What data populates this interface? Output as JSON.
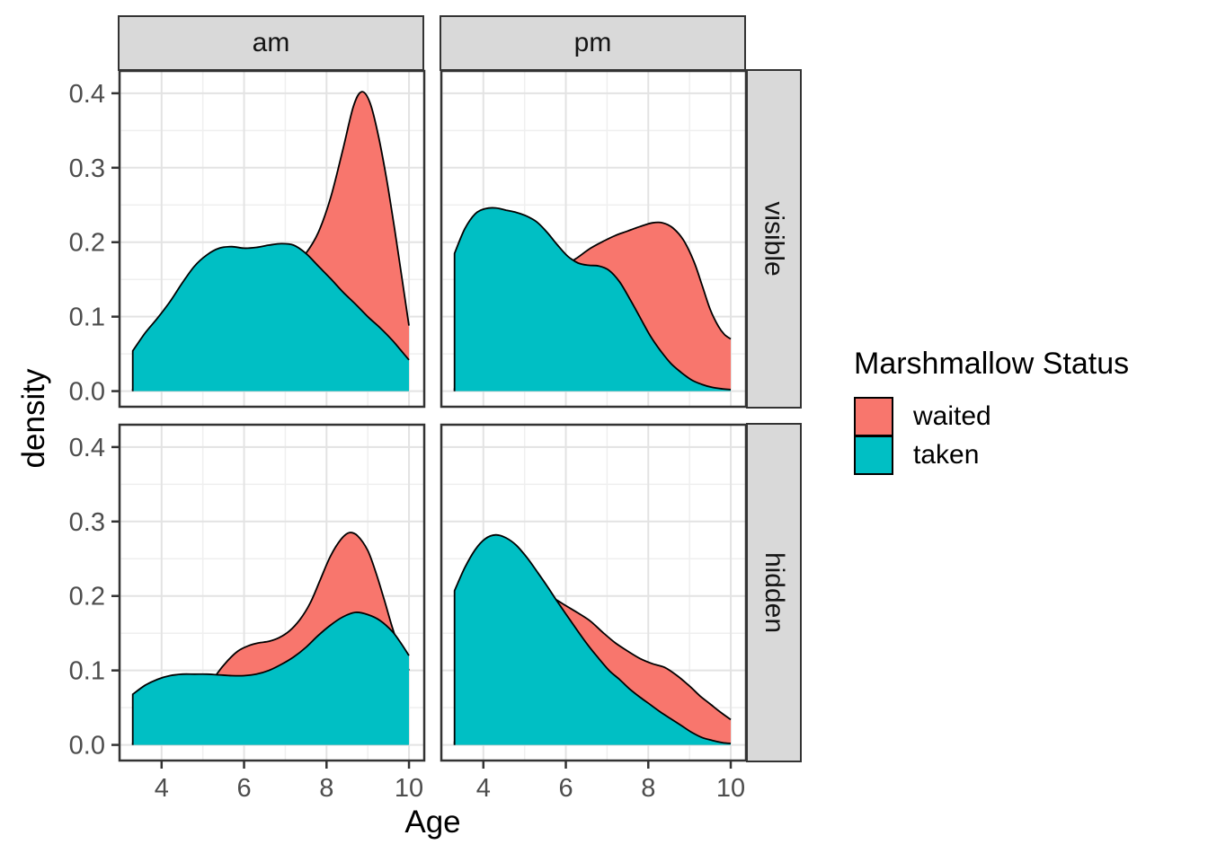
{
  "figure_title": "",
  "axes": {
    "x_title": "Age",
    "y_title": "density"
  },
  "legend": {
    "title": "Marshmallow Status",
    "items": [
      {
        "label": "waited",
        "color": "#F8766D"
      },
      {
        "label": "taken",
        "color": "#00BFC4"
      }
    ]
  },
  "colors": {
    "panel_background": "#FFFFFF",
    "panel_border": "#333333",
    "grid_major": "#E3E3E3",
    "grid_minor": "#EFEFEF",
    "strip_background": "#D9D9D9",
    "tick_mark": "#333333",
    "tick_label": "#4D4D4D",
    "curve_outline": "#000000"
  },
  "chart_data": {
    "type": "area",
    "subtype": "density",
    "title": "",
    "xlabel": "Age",
    "ylabel": "density",
    "xlim": [
      2.98,
      10.37
    ],
    "ylim": [
      -0.021,
      0.43
    ],
    "grid": true,
    "legend_position": "right",
    "x_ticks": {
      "values": [
        4,
        6,
        8,
        10
      ],
      "labels": [
        "4",
        "6",
        "8",
        "10"
      ]
    },
    "x_minor": [
      3,
      5,
      7,
      9
    ],
    "y_ticks": {
      "values": [
        0.0,
        0.1,
        0.2,
        0.3,
        0.4
      ],
      "labels": [
        "0.0",
        "0.1",
        "0.2",
        "0.3",
        "0.4"
      ]
    },
    "y_minor": [
      0.05,
      0.15,
      0.25,
      0.35
    ],
    "facets": {
      "cols": [
        "am",
        "pm"
      ],
      "rows": [
        "visible",
        "hidden"
      ]
    },
    "panels": [
      {
        "col": "am",
        "row": "visible",
        "series": [
          {
            "name": "waited",
            "points": [
              [
                3.3,
                0.002
              ],
              [
                3.7,
                0.004
              ],
              [
                4.1,
                0.008
              ],
              [
                4.5,
                0.015
              ],
              [
                4.9,
                0.027
              ],
              [
                5.3,
                0.044
              ],
              [
                5.7,
                0.068
              ],
              [
                6.1,
                0.097
              ],
              [
                6.5,
                0.126
              ],
              [
                6.9,
                0.152
              ],
              [
                7.2,
                0.168
              ],
              [
                7.5,
                0.185
              ],
              [
                7.8,
                0.213
              ],
              [
                8.1,
                0.26
              ],
              [
                8.4,
                0.325
              ],
              [
                8.65,
                0.382
              ],
              [
                8.85,
                0.402
              ],
              [
                9.05,
                0.388
              ],
              [
                9.25,
                0.345
              ],
              [
                9.45,
                0.287
              ],
              [
                9.65,
                0.218
              ],
              [
                9.82,
                0.155
              ],
              [
                10,
                0.088
              ]
            ]
          },
          {
            "name": "taken",
            "points": [
              [
                3.3,
                0.054
              ],
              [
                3.6,
                0.078
              ],
              [
                3.9,
                0.098
              ],
              [
                4.2,
                0.12
              ],
              [
                4.5,
                0.145
              ],
              [
                4.8,
                0.168
              ],
              [
                5.1,
                0.183
              ],
              [
                5.4,
                0.192
              ],
              [
                5.7,
                0.194
              ],
              [
                6,
                0.192
              ],
              [
                6.3,
                0.193
              ],
              [
                6.6,
                0.196
              ],
              [
                6.9,
                0.198
              ],
              [
                7.2,
                0.196
              ],
              [
                7.5,
                0.185
              ],
              [
                7.8,
                0.168
              ],
              [
                8.1,
                0.151
              ],
              [
                8.4,
                0.133
              ],
              [
                8.7,
                0.117
              ],
              [
                9,
                0.1
              ],
              [
                9.3,
                0.085
              ],
              [
                9.6,
                0.068
              ],
              [
                9.8,
                0.055
              ],
              [
                10,
                0.042
              ]
            ]
          }
        ]
      },
      {
        "col": "pm",
        "row": "visible",
        "series": [
          {
            "name": "waited",
            "points": [
              [
                3.3,
                0.003
              ],
              [
                3.7,
                0.009
              ],
              [
                4.1,
                0.022
              ],
              [
                4.5,
                0.045
              ],
              [
                4.9,
                0.078
              ],
              [
                5.3,
                0.115
              ],
              [
                5.7,
                0.148
              ],
              [
                6,
                0.168
              ],
              [
                6.3,
                0.18
              ],
              [
                6.6,
                0.192
              ],
              [
                6.9,
                0.201
              ],
              [
                7.2,
                0.209
              ],
              [
                7.5,
                0.215
              ],
              [
                7.8,
                0.221
              ],
              [
                8.1,
                0.226
              ],
              [
                8.35,
                0.226
              ],
              [
                8.6,
                0.219
              ],
              [
                8.85,
                0.203
              ],
              [
                9.1,
                0.175
              ],
              [
                9.3,
                0.143
              ],
              [
                9.5,
                0.11
              ],
              [
                9.7,
                0.087
              ],
              [
                9.85,
                0.076
              ],
              [
                10,
                0.07
              ]
            ]
          },
          {
            "name": "taken",
            "points": [
              [
                3.3,
                0.185
              ],
              [
                3.55,
                0.218
              ],
              [
                3.8,
                0.238
              ],
              [
                4.05,
                0.245
              ],
              [
                4.3,
                0.246
              ],
              [
                4.55,
                0.243
              ],
              [
                4.8,
                0.24
              ],
              [
                5.05,
                0.235
              ],
              [
                5.3,
                0.227
              ],
              [
                5.55,
                0.213
              ],
              [
                5.8,
                0.196
              ],
              [
                6.05,
                0.181
              ],
              [
                6.3,
                0.172
              ],
              [
                6.55,
                0.169
              ],
              [
                6.8,
                0.168
              ],
              [
                7.05,
                0.162
              ],
              [
                7.3,
                0.147
              ],
              [
                7.55,
                0.124
              ],
              [
                7.8,
                0.099
              ],
              [
                8.05,
                0.074
              ],
              [
                8.3,
                0.054
              ],
              [
                8.55,
                0.037
              ],
              [
                8.8,
                0.025
              ],
              [
                9.05,
                0.015
              ],
              [
                9.3,
                0.009
              ],
              [
                9.55,
                0.005
              ],
              [
                9.8,
                0.003
              ],
              [
                10,
                0.002
              ]
            ]
          }
        ]
      },
      {
        "col": "am",
        "row": "hidden",
        "series": [
          {
            "name": "waited",
            "points": [
              [
                3.3,
                0.002
              ],
              [
                3.7,
                0.006
              ],
              [
                4.1,
                0.014
              ],
              [
                4.5,
                0.029
              ],
              [
                4.8,
                0.049
              ],
              [
                5.1,
                0.074
              ],
              [
                5.35,
                0.096
              ],
              [
                5.6,
                0.113
              ],
              [
                5.85,
                0.126
              ],
              [
                6.1,
                0.133
              ],
              [
                6.35,
                0.137
              ],
              [
                6.6,
                0.139
              ],
              [
                6.85,
                0.144
              ],
              [
                7.1,
                0.153
              ],
              [
                7.35,
                0.168
              ],
              [
                7.6,
                0.19
              ],
              [
                7.85,
                0.222
              ],
              [
                8.1,
                0.254
              ],
              [
                8.35,
                0.276
              ],
              [
                8.55,
                0.285
              ],
              [
                8.75,
                0.281
              ],
              [
                9,
                0.261
              ],
              [
                9.2,
                0.231
              ],
              [
                9.4,
                0.195
              ],
              [
                9.6,
                0.157
              ],
              [
                9.8,
                0.125
              ],
              [
                10,
                0.1
              ]
            ]
          },
          {
            "name": "taken",
            "points": [
              [
                3.3,
                0.068
              ],
              [
                3.6,
                0.08
              ],
              [
                3.9,
                0.088
              ],
              [
                4.2,
                0.093
              ],
              [
                4.5,
                0.095
              ],
              [
                4.8,
                0.095
              ],
              [
                5.1,
                0.095
              ],
              [
                5.4,
                0.094
              ],
              [
                5.7,
                0.093
              ],
              [
                6,
                0.093
              ],
              [
                6.3,
                0.095
              ],
              [
                6.6,
                0.1
              ],
              [
                6.9,
                0.108
              ],
              [
                7.2,
                0.118
              ],
              [
                7.5,
                0.131
              ],
              [
                7.8,
                0.147
              ],
              [
                8.1,
                0.161
              ],
              [
                8.4,
                0.172
              ],
              [
                8.7,
                0.178
              ],
              [
                9,
                0.175
              ],
              [
                9.3,
                0.167
              ],
              [
                9.6,
                0.152
              ],
              [
                9.8,
                0.137
              ],
              [
                10,
                0.12
              ]
            ]
          }
        ]
      },
      {
        "col": "pm",
        "row": "hidden",
        "series": [
          {
            "name": "waited",
            "points": [
              [
                3.3,
                0.004
              ],
              [
                3.7,
                0.016
              ],
              [
                4.1,
                0.042
              ],
              [
                4.5,
                0.082
              ],
              [
                4.9,
                0.132
              ],
              [
                5.2,
                0.172
              ],
              [
                5.45,
                0.203
              ],
              [
                5.7,
                0.197
              ],
              [
                6,
                0.187
              ],
              [
                6.3,
                0.177
              ],
              [
                6.6,
                0.166
              ],
              [
                6.9,
                0.151
              ],
              [
                7.2,
                0.137
              ],
              [
                7.5,
                0.126
              ],
              [
                7.8,
                0.116
              ],
              [
                8.1,
                0.109
              ],
              [
                8.4,
                0.104
              ],
              [
                8.7,
                0.093
              ],
              [
                9,
                0.079
              ],
              [
                9.25,
                0.066
              ],
              [
                9.5,
                0.055
              ],
              [
                9.75,
                0.044
              ],
              [
                10,
                0.034
              ]
            ]
          },
          {
            "name": "taken",
            "points": [
              [
                3.3,
                0.207
              ],
              [
                3.55,
                0.238
              ],
              [
                3.8,
                0.262
              ],
              [
                4.05,
                0.277
              ],
              [
                4.3,
                0.282
              ],
              [
                4.55,
                0.278
              ],
              [
                4.8,
                0.268
              ],
              [
                5.05,
                0.252
              ],
              [
                5.3,
                0.233
              ],
              [
                5.55,
                0.213
              ],
              [
                5.8,
                0.192
              ],
              [
                6.05,
                0.172
              ],
              [
                6.3,
                0.152
              ],
              [
                6.55,
                0.133
              ],
              [
                6.8,
                0.116
              ],
              [
                7.05,
                0.1
              ],
              [
                7.3,
                0.088
              ],
              [
                7.55,
                0.075
              ],
              [
                7.8,
                0.064
              ],
              [
                8.05,
                0.054
              ],
              [
                8.3,
                0.044
              ],
              [
                8.55,
                0.035
              ],
              [
                8.8,
                0.026
              ],
              [
                9.05,
                0.017
              ],
              [
                9.3,
                0.01
              ],
              [
                9.55,
                0.006
              ],
              [
                9.8,
                0.003
              ],
              [
                10,
                0.002
              ]
            ]
          }
        ]
      }
    ]
  }
}
